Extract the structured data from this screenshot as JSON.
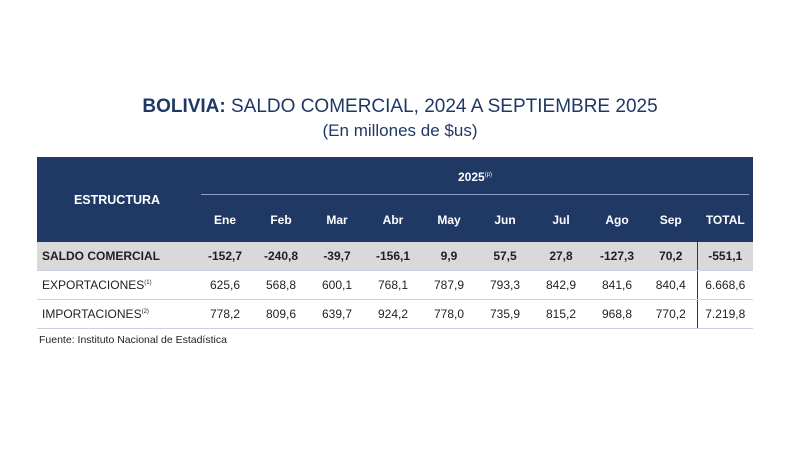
{
  "title": {
    "bold": "BOLIVIA:",
    "rest": " SALDO COMERCIAL, 2024 A SEPTIEMBRE 2025",
    "subtitle": "(En millones de $us)"
  },
  "table": {
    "structure_header": "ESTRUCTURA",
    "year_header": "2025",
    "year_note": "(p)",
    "months": [
      "Ene",
      "Feb",
      "Mar",
      "Abr",
      "May",
      "Jun",
      "Jul",
      "Ago",
      "Sep"
    ],
    "total_header": "TOTAL",
    "rows": [
      {
        "label": "SALDO COMERCIAL",
        "note": "",
        "values": [
          "-152,7",
          "-240,8",
          "-39,7",
          "-156,1",
          "9,9",
          "57,5",
          "27,8",
          "-127,3",
          "70,2"
        ],
        "total": "-551,1"
      },
      {
        "label": "EXPORTACIONES",
        "note": "(1)",
        "values": [
          "625,6",
          "568,8",
          "600,1",
          "768,1",
          "787,9",
          "793,3",
          "842,9",
          "841,6",
          "840,4"
        ],
        "total": "6.668,6"
      },
      {
        "label": "IMPORTACIONES",
        "note": "(2)",
        "values": [
          "778,2",
          "809,6",
          "639,7",
          "924,2",
          "778,0",
          "735,9",
          "815,2",
          "968,8",
          "770,2"
        ],
        "total": "7.219,8"
      }
    ]
  },
  "source": "Fuente: Instituto Nacional de Estadística",
  "colors": {
    "header_bg": "#1f3864",
    "highlight_row": "#d9d9d9",
    "title": "#1f3864"
  }
}
